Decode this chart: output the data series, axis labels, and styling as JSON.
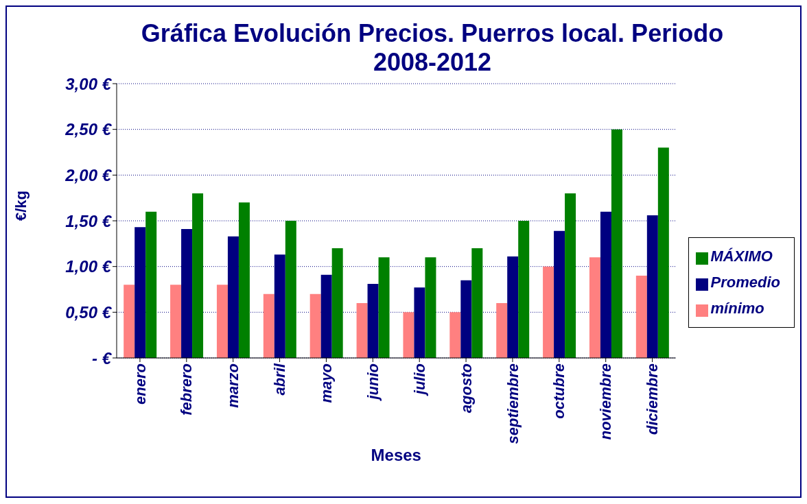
{
  "chart_data": {
    "type": "bar",
    "title": "Gráfica Evolución Precios. Puerros local. Periodo 2008-2012",
    "xlabel": "Meses",
    "ylabel": "€/kg",
    "categories": [
      "enero",
      "febrero",
      "marzo",
      "abril",
      "mayo",
      "junio",
      "julio",
      "agosto",
      "septiembre",
      "octubre",
      "noviembre",
      "diciembre"
    ],
    "series": [
      {
        "name": "mínimo",
        "color": "#ff8080",
        "values": [
          0.8,
          0.8,
          0.8,
          0.7,
          0.7,
          0.6,
          0.5,
          0.5,
          0.6,
          1.0,
          1.1,
          0.9
        ]
      },
      {
        "name": "Promedio",
        "color": "#000080",
        "values": [
          1.43,
          1.41,
          1.33,
          1.13,
          0.91,
          0.81,
          0.77,
          0.85,
          1.11,
          1.39,
          1.6,
          1.56
        ]
      },
      {
        "name": "MÁXIMO",
        "color": "#008000",
        "values": [
          1.6,
          1.8,
          1.7,
          1.5,
          1.2,
          1.1,
          1.1,
          1.2,
          1.5,
          1.8,
          2.5,
          2.3
        ]
      }
    ],
    "ylim": [
      0,
      3
    ],
    "yticks": [
      {
        "value": 0,
        "label": "-   €"
      },
      {
        "value": 0.5,
        "label": "0,50 €"
      },
      {
        "value": 1,
        "label": "1,00 €"
      },
      {
        "value": 1.5,
        "label": "1,50 €"
      },
      {
        "value": 2,
        "label": "2,00 €"
      },
      {
        "value": 2.5,
        "label": "2,50 €"
      },
      {
        "value": 3,
        "label": "3,00 €"
      }
    ],
    "grid": "y",
    "legend": "right"
  }
}
